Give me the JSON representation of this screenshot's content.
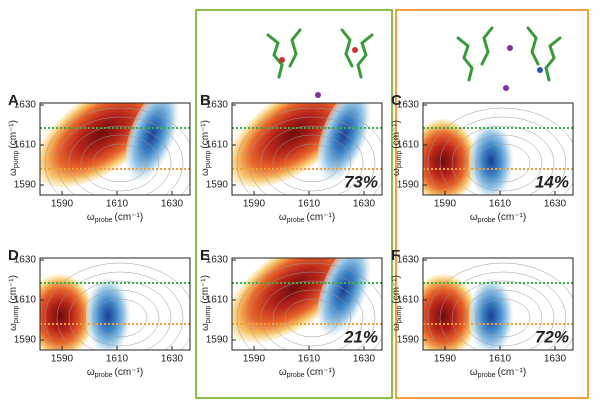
{
  "panels": [
    {
      "label": "A"
    },
    {
      "label": "B",
      "percent": "73%"
    },
    {
      "label": "C",
      "percent": "14%"
    },
    {
      "label": "D"
    },
    {
      "label": "E",
      "percent": "21%"
    },
    {
      "label": "F",
      "percent": "72%"
    }
  ],
  "x_axis": {
    "symbol": "ω",
    "subscript": "probe",
    "unit": "(cm⁻¹)",
    "ticks": [
      "1590",
      "1610",
      "1630"
    ]
  },
  "y_axis": {
    "symbol": "ω",
    "subscript": "pump",
    "unit": "(cm⁻¹)",
    "ticks": [
      "1630",
      "1610",
      "1590"
    ]
  }
}
